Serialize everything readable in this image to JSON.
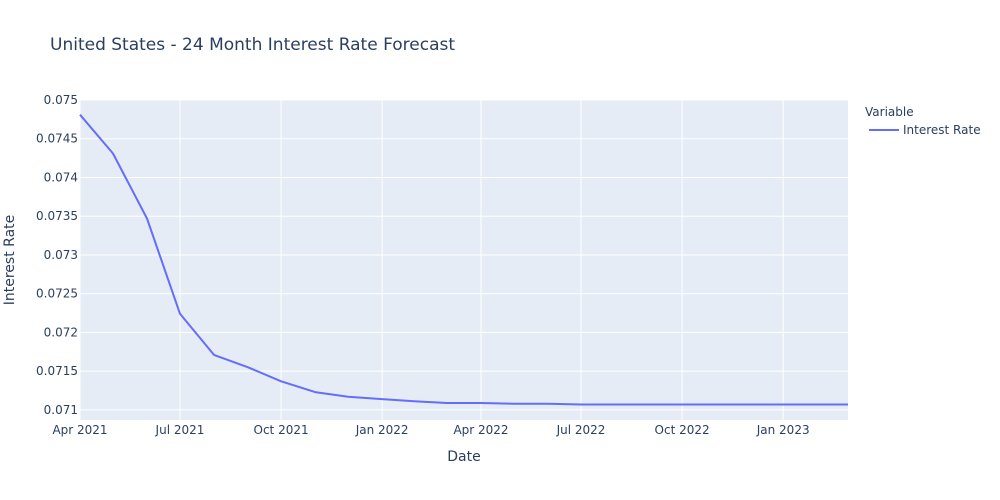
{
  "chart_data": {
    "type": "line",
    "title": "United States - 24 Month Interest Rate Forecast",
    "xlabel": "Date",
    "ylabel": "Interest Rate",
    "legend_title": "Variable",
    "legend_position": "top-right",
    "grid": true,
    "xlim": [
      "2021-04-01",
      "2023-03-01"
    ],
    "ylim": [
      0.07087,
      0.075
    ],
    "x_ticks": [
      {
        "value": "2021-04-01",
        "label": "Apr 2021"
      },
      {
        "value": "2021-07-01",
        "label": "Jul 2021"
      },
      {
        "value": "2021-10-01",
        "label": "Oct 2021"
      },
      {
        "value": "2022-01-01",
        "label": "Jan 2022"
      },
      {
        "value": "2022-04-01",
        "label": "Apr 2022"
      },
      {
        "value": "2022-07-01",
        "label": "Jul 2022"
      },
      {
        "value": "2022-10-01",
        "label": "Oct 2022"
      },
      {
        "value": "2023-01-01",
        "label": "Jan 2023"
      }
    ],
    "y_ticks": [
      {
        "value": 0.071,
        "label": "0.071"
      },
      {
        "value": 0.0715,
        "label": "0.0715"
      },
      {
        "value": 0.072,
        "label": "0.072"
      },
      {
        "value": 0.0725,
        "label": "0.0725"
      },
      {
        "value": 0.073,
        "label": "0.073"
      },
      {
        "value": 0.0735,
        "label": "0.0735"
      },
      {
        "value": 0.074,
        "label": "0.074"
      },
      {
        "value": 0.0745,
        "label": "0.0745"
      },
      {
        "value": 0.075,
        "label": "0.075"
      }
    ],
    "series": [
      {
        "name": "Interest Rate",
        "color": "#636efa",
        "x": [
          "2021-04-01",
          "2021-05-01",
          "2021-06-01",
          "2021-07-01",
          "2021-08-01",
          "2021-09-01",
          "2021-10-01",
          "2021-11-01",
          "2021-12-01",
          "2022-01-01",
          "2022-02-01",
          "2022-03-01",
          "2022-04-01",
          "2022-05-01",
          "2022-06-01",
          "2022-07-01",
          "2022-08-01",
          "2022-09-01",
          "2022-10-01",
          "2022-11-01",
          "2022-12-01",
          "2023-01-01",
          "2023-02-01",
          "2023-03-01"
        ],
        "y": [
          0.07481,
          0.07431,
          0.07347,
          0.07224,
          0.07171,
          0.07155,
          0.07137,
          0.07123,
          0.07117,
          0.07114,
          0.07111,
          0.07109,
          0.07109,
          0.07108,
          0.07108,
          0.07107,
          0.07107,
          0.07107,
          0.07107,
          0.07107,
          0.07107,
          0.07107,
          0.07107,
          0.07107
        ]
      }
    ]
  },
  "colors": {
    "plot_background": "#e5ecf6",
    "grid": "#ffffff",
    "text": "#2a3f5f",
    "series": "#636efa"
  }
}
